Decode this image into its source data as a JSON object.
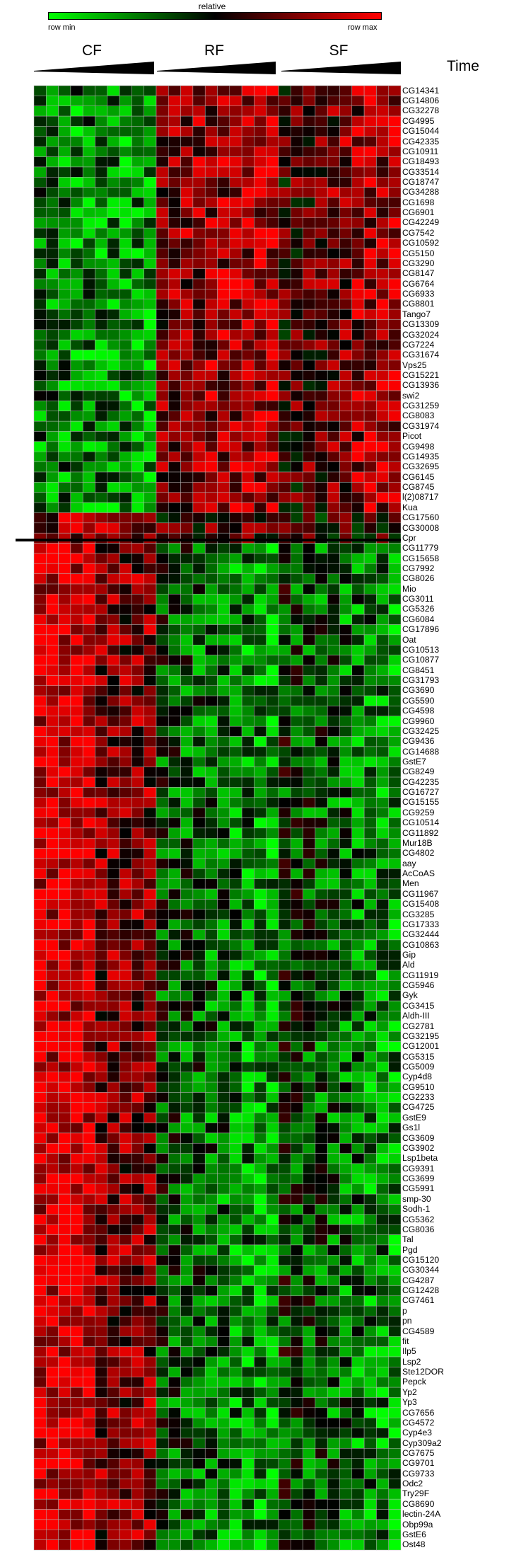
{
  "legend": {
    "title": "relative",
    "min_label": "row min",
    "max_label": "row max",
    "colors": [
      "#00ff00",
      "#000000",
      "#ff0000"
    ]
  },
  "groups": [
    "CF",
    "RF",
    "SF"
  ],
  "axis_label": "Time",
  "chart_data": {
    "type": "heatmap",
    "title": "",
    "color_scale": "row-relative green (row min) to black to red (row max)",
    "columns_per_group": 10,
    "divider_after_row": "Cpr",
    "rows": [
      {
        "gene": "CG14341",
        "profile": "up"
      },
      {
        "gene": "CG14806",
        "profile": "up"
      },
      {
        "gene": "CG32278",
        "profile": "up"
      },
      {
        "gene": "CG4995",
        "profile": "up"
      },
      {
        "gene": "CG15044",
        "profile": "up"
      },
      {
        "gene": "CG42335",
        "profile": "up"
      },
      {
        "gene": "CG10911",
        "profile": "up"
      },
      {
        "gene": "CG18493",
        "profile": "up"
      },
      {
        "gene": "CG33514",
        "profile": "up"
      },
      {
        "gene": "CG18747",
        "profile": "up"
      },
      {
        "gene": "CG34288",
        "profile": "up"
      },
      {
        "gene": "CG1698",
        "profile": "up"
      },
      {
        "gene": "CG6901",
        "profile": "up"
      },
      {
        "gene": "CG42249",
        "profile": "up"
      },
      {
        "gene": "CG7542",
        "profile": "up"
      },
      {
        "gene": "CG10592",
        "profile": "up"
      },
      {
        "gene": "CG5150",
        "profile": "up"
      },
      {
        "gene": "CG3290",
        "profile": "up"
      },
      {
        "gene": "CG8147",
        "profile": "up"
      },
      {
        "gene": "CG6764",
        "profile": "up"
      },
      {
        "gene": "CG6933",
        "profile": "up"
      },
      {
        "gene": "CG8801",
        "profile": "up"
      },
      {
        "gene": "Tango7",
        "profile": "up"
      },
      {
        "gene": "CG13309",
        "profile": "up"
      },
      {
        "gene": "CG32024",
        "profile": "up"
      },
      {
        "gene": "CG7224",
        "profile": "up"
      },
      {
        "gene": "CG31674",
        "profile": "up"
      },
      {
        "gene": "Vps25",
        "profile": "up"
      },
      {
        "gene": "CG15221",
        "profile": "up"
      },
      {
        "gene": "CG13936",
        "profile": "up"
      },
      {
        "gene": "swi2",
        "profile": "up"
      },
      {
        "gene": "CG31259",
        "profile": "up"
      },
      {
        "gene": "CG8083",
        "profile": "up"
      },
      {
        "gene": "CG31974",
        "profile": "up"
      },
      {
        "gene": "Picot",
        "profile": "up"
      },
      {
        "gene": "CG9498",
        "profile": "up"
      },
      {
        "gene": "CG14935",
        "profile": "up"
      },
      {
        "gene": "CG32695",
        "profile": "up"
      },
      {
        "gene": "CG6145",
        "profile": "up"
      },
      {
        "gene": "CG8745",
        "profile": "up"
      },
      {
        "gene": "l(2)08717",
        "profile": "up"
      },
      {
        "gene": "Kua",
        "profile": "up"
      },
      {
        "gene": "CG17560",
        "profile": "mixed"
      },
      {
        "gene": "CG30008",
        "profile": "mixed"
      },
      {
        "gene": "Cpr",
        "profile": "mixed"
      },
      {
        "gene": "CG11779",
        "profile": "down"
      },
      {
        "gene": "CG15658",
        "profile": "down"
      },
      {
        "gene": "CG7992",
        "profile": "down"
      },
      {
        "gene": "CG8026",
        "profile": "down"
      },
      {
        "gene": "Mio",
        "profile": "down"
      },
      {
        "gene": "CG3011",
        "profile": "down"
      },
      {
        "gene": "CG5326",
        "profile": "down"
      },
      {
        "gene": "CG6084",
        "profile": "down"
      },
      {
        "gene": "CG17896",
        "profile": "down"
      },
      {
        "gene": "Oat",
        "profile": "down"
      },
      {
        "gene": "CG10513",
        "profile": "down"
      },
      {
        "gene": "CG10877",
        "profile": "down"
      },
      {
        "gene": "CG8451",
        "profile": "down"
      },
      {
        "gene": "CG31793",
        "profile": "down"
      },
      {
        "gene": "CG3690",
        "profile": "down"
      },
      {
        "gene": "CG5590",
        "profile": "down"
      },
      {
        "gene": "CG4598",
        "profile": "down"
      },
      {
        "gene": "CG9960",
        "profile": "down"
      },
      {
        "gene": "CG32425",
        "profile": "down"
      },
      {
        "gene": "CG9436",
        "profile": "down"
      },
      {
        "gene": "CG14688",
        "profile": "down"
      },
      {
        "gene": "GstE7",
        "profile": "down"
      },
      {
        "gene": "CG8249",
        "profile": "down"
      },
      {
        "gene": "CG42235",
        "profile": "down"
      },
      {
        "gene": "CG16727",
        "profile": "down"
      },
      {
        "gene": "CG15155",
        "profile": "down"
      },
      {
        "gene": "CG9259",
        "profile": "down"
      },
      {
        "gene": "CG10514",
        "profile": "down"
      },
      {
        "gene": "CG11892",
        "profile": "down"
      },
      {
        "gene": "Mur18B",
        "profile": "down"
      },
      {
        "gene": "CG4802",
        "profile": "down"
      },
      {
        "gene": "aay",
        "profile": "down"
      },
      {
        "gene": "AcCoAS",
        "profile": "down"
      },
      {
        "gene": "Men",
        "profile": "down"
      },
      {
        "gene": "CG11967",
        "profile": "down"
      },
      {
        "gene": "CG15408",
        "profile": "down"
      },
      {
        "gene": "CG3285",
        "profile": "down"
      },
      {
        "gene": "CG17333",
        "profile": "down"
      },
      {
        "gene": "CG32444",
        "profile": "down"
      },
      {
        "gene": "CG10863",
        "profile": "down"
      },
      {
        "gene": "Gip",
        "profile": "down"
      },
      {
        "gene": "Ald",
        "profile": "down"
      },
      {
        "gene": "CG11919",
        "profile": "down"
      },
      {
        "gene": "CG5946",
        "profile": "down"
      },
      {
        "gene": "Gyk",
        "profile": "down"
      },
      {
        "gene": "CG3415",
        "profile": "down"
      },
      {
        "gene": "Aldh-III",
        "profile": "down"
      },
      {
        "gene": "CG2781",
        "profile": "down"
      },
      {
        "gene": "CG32195",
        "profile": "down"
      },
      {
        "gene": "CG12001",
        "profile": "down"
      },
      {
        "gene": "CG5315",
        "profile": "down"
      },
      {
        "gene": "CG5009",
        "profile": "down"
      },
      {
        "gene": "Cyp4d8",
        "profile": "down"
      },
      {
        "gene": "CG9510",
        "profile": "down"
      },
      {
        "gene": "CG2233",
        "profile": "down"
      },
      {
        "gene": "CG4725",
        "profile": "down"
      },
      {
        "gene": "GstE9",
        "profile": "down"
      },
      {
        "gene": "Gs1l",
        "profile": "down"
      },
      {
        "gene": "CG3609",
        "profile": "down"
      },
      {
        "gene": "CG3902",
        "profile": "down"
      },
      {
        "gene": "Lsp1beta",
        "profile": "down"
      },
      {
        "gene": "CG9391",
        "profile": "down"
      },
      {
        "gene": "CG3699",
        "profile": "down"
      },
      {
        "gene": "CG5991",
        "profile": "down"
      },
      {
        "gene": "smp-30",
        "profile": "down"
      },
      {
        "gene": "Sodh-1",
        "profile": "down"
      },
      {
        "gene": "CG5362",
        "profile": "down"
      },
      {
        "gene": "CG8036",
        "profile": "down"
      },
      {
        "gene": "Tal",
        "profile": "down"
      },
      {
        "gene": "Pgd",
        "profile": "down"
      },
      {
        "gene": "CG15120",
        "profile": "down"
      },
      {
        "gene": "CG30344",
        "profile": "down"
      },
      {
        "gene": "CG4287",
        "profile": "down"
      },
      {
        "gene": "CG12428",
        "profile": "down"
      },
      {
        "gene": "CG7461",
        "profile": "down"
      },
      {
        "gene": "p",
        "profile": "down"
      },
      {
        "gene": "pn",
        "profile": "down"
      },
      {
        "gene": "CG4589",
        "profile": "down"
      },
      {
        "gene": "fit",
        "profile": "down"
      },
      {
        "gene": "Ilp5",
        "profile": "down"
      },
      {
        "gene": "Lsp2",
        "profile": "down"
      },
      {
        "gene": "Ste12DOR",
        "profile": "down"
      },
      {
        "gene": "Pepck",
        "profile": "down"
      },
      {
        "gene": "Yp2",
        "profile": "down"
      },
      {
        "gene": "Yp3",
        "profile": "down"
      },
      {
        "gene": "CG7656",
        "profile": "down"
      },
      {
        "gene": "CG4572",
        "profile": "down"
      },
      {
        "gene": "Cyp4e3",
        "profile": "down"
      },
      {
        "gene": "Cyp309a2",
        "profile": "down"
      },
      {
        "gene": "CG7675",
        "profile": "down"
      },
      {
        "gene": "CG9701",
        "profile": "down"
      },
      {
        "gene": "CG9733",
        "profile": "down"
      },
      {
        "gene": "Odc2",
        "profile": "down"
      },
      {
        "gene": "Try29F",
        "profile": "down"
      },
      {
        "gene": "CG8690",
        "profile": "down"
      },
      {
        "gene": "lectin-24A",
        "profile": "down"
      },
      {
        "gene": "Obp99a",
        "profile": "down"
      },
      {
        "gene": "GstE6",
        "profile": "down"
      },
      {
        "gene": "Ost48",
        "profile": "down"
      }
    ]
  }
}
